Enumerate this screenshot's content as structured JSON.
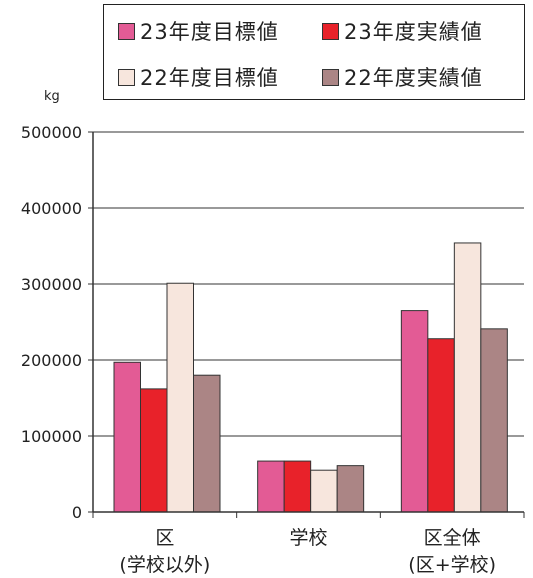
{
  "chart_data": {
    "type": "bar",
    "unit_label": "kg",
    "categories": [
      [
        "区",
        "(学校以外)"
      ],
      [
        "学校"
      ],
      [
        "区全体",
        "(区+学校)"
      ]
    ],
    "series": [
      {
        "name": "23年度目標値",
        "color": "#e35b95",
        "values": [
          197000,
          67000,
          265000
        ]
      },
      {
        "name": "23年度実績値",
        "color": "#e8222a",
        "values": [
          162000,
          67000,
          228000
        ]
      },
      {
        "name": "22年度目標値",
        "color": "#f7e6dd",
        "values": [
          301000,
          55000,
          354000
        ]
      },
      {
        "name": "22年度実績値",
        "color": "#ab8585",
        "values": [
          180000,
          61000,
          241000
        ]
      }
    ],
    "yticks": [
      "0",
      "100000",
      "200000",
      "300000",
      "400000",
      "500000"
    ],
    "ylim": [
      0,
      500000
    ],
    "grid": true,
    "legend_position": "top"
  }
}
